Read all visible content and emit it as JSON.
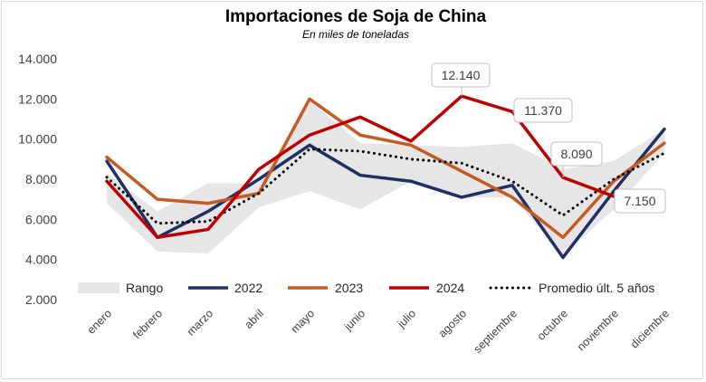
{
  "chart_data": {
    "type": "line",
    "title": "Importaciones de Soja de China",
    "subtitle": "En miles de toneladas",
    "xlabel": "",
    "ylabel": "",
    "ylim": [
      2000,
      14000
    ],
    "yticks": [
      "2.000",
      "4.000",
      "6.000",
      "8.000",
      "10.000",
      "12.000",
      "14.000"
    ],
    "ytick_values": [
      2000,
      4000,
      6000,
      8000,
      10000,
      12000,
      14000
    ],
    "categories": [
      "enero",
      "febrero",
      "marzo",
      "abril",
      "mayo",
      "junio",
      "julio",
      "agosto",
      "septiembre",
      "octubre",
      "noviembre",
      "diciembre"
    ],
    "grid": false,
    "legend_position": "bottom",
    "range": {
      "name": "Rango",
      "color": "#e6e6e6",
      "upper": [
        8300,
        6400,
        7800,
        7800,
        11900,
        9800,
        9700,
        9600,
        9800,
        8500,
        8900,
        10500
      ],
      "lower": [
        6800,
        4400,
        4300,
        6600,
        7400,
        6500,
        7900,
        7100,
        7100,
        4200,
        6500,
        9300
      ]
    },
    "series": [
      {
        "name": "2022",
        "color": "#1f3164",
        "style": "solid",
        "values": [
          8900,
          5100,
          6400,
          8000,
          9700,
          8200,
          7900,
          7100,
          7700,
          4100,
          7400,
          10500
        ]
      },
      {
        "name": "2023",
        "color": "#c55a24",
        "style": "solid",
        "values": [
          9100,
          7000,
          6800,
          7300,
          12000,
          10200,
          9700,
          8400,
          7100,
          5100,
          7900,
          9800
        ]
      },
      {
        "name": "2024",
        "color": "#c00000",
        "style": "solid",
        "values": [
          7900,
          5100,
          5500,
          8500,
          10200,
          11100,
          9900,
          12140,
          11370,
          8090,
          7150,
          null
        ]
      },
      {
        "name": "Promedio últ. 5 años",
        "color": "#000000",
        "style": "dotted",
        "values": [
          8100,
          5800,
          5900,
          7300,
          9500,
          9400,
          9000,
          8800,
          7900,
          6200,
          8000,
          9300
        ]
      }
    ],
    "annotations": [
      {
        "text": "12.140",
        "index": 7,
        "value": 12140
      },
      {
        "text": "11.370",
        "index": 8,
        "value": 11370
      },
      {
        "text": "8.090",
        "index": 9,
        "value": 8090
      },
      {
        "text": "7.150",
        "index": 10,
        "value": 7150
      }
    ]
  }
}
